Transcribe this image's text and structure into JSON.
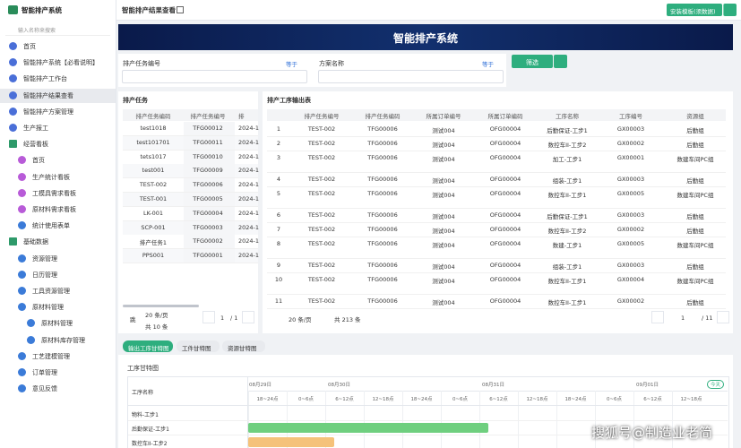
{
  "sidebar": {
    "logo": "智能排产系统",
    "search_placeholder": "输入名称来搜索",
    "menu": [
      "首页",
      "智能排产系统【必看说明】",
      "智能排产工作台",
      "智能排产结果查看",
      "智能排产方案管理",
      "生产报工",
      "经营看板",
      "首页",
      "生产统计看板",
      "工模具需求看板",
      "原材料需求看板",
      "统计使用表单",
      "基础数据",
      "资源管理",
      "日历管理",
      "工具资源管理",
      "原材料管理",
      "原材料管理",
      "原材料库存管理",
      "工艺建模管理",
      "订单管理",
      "意见反馈"
    ]
  },
  "header": {
    "title": "智能排产结果查看",
    "button": "安装模板(须数据)"
  },
  "banner": {
    "title": "智能排产系统"
  },
  "filters": [
    {
      "label": "排产任务编号",
      "operator": "等于"
    },
    {
      "label": "方案名称",
      "operator": "等于"
    }
  ],
  "filter_button": "筛选",
  "task_panel": {
    "title": "排产任务",
    "columns": [
      "排产任务编码",
      "排产任务编号",
      "排"
    ],
    "rows": [
      [
        "test1018",
        "TFG00012",
        "2024-1"
      ],
      [
        "test101701",
        "TFG00011",
        "2024-1"
      ],
      [
        "tets1017",
        "TFG00010",
        "2024-1"
      ],
      [
        "test001",
        "TFG00009",
        "2024-1"
      ],
      [
        "TEST-002",
        "TFG00006",
        "2024-1"
      ],
      [
        "TEST-001",
        "TFG00005",
        "2024-1"
      ],
      [
        "LK-001",
        "TFG00004",
        "2024-1"
      ],
      [
        "SCP-001",
        "TFG00003",
        "2024-1"
      ],
      [
        "排产任务1",
        "TFG00002",
        "2024-1"
      ],
      [
        "PPS001",
        "TFG00001",
        "2024-1"
      ]
    ],
    "pagination": {
      "jump": "跳",
      "page_size": "20 条/页",
      "page": "1",
      "pages": "/ 1",
      "total": "共 10 条"
    }
  },
  "output_panel": {
    "title": "排产工序输出表",
    "columns": [
      "排产任务编号",
      "排产任务编码",
      "所属订单编号",
      "所属订单编码",
      "工序名称",
      "工序编号",
      "资源组"
    ],
    "rows": [
      [
        "1",
        "TEST-002",
        "TFG00006",
        "测试004",
        "OFG00004",
        "后勤保证-工步1",
        "GX00003",
        "后勤组"
      ],
      [
        "2",
        "TEST-002",
        "TFG00006",
        "测试004",
        "OFG00004",
        "数控车II-工步2",
        "GX00002",
        "后勤组"
      ],
      [
        "3",
        "TEST-002",
        "TFG00006",
        "测试004",
        "OFG00004",
        "加工-工步1",
        "GX00001",
        "数建车间PC组"
      ],
      [
        "4",
        "TEST-002",
        "TFG00006",
        "测试004",
        "OFG00004",
        "组装-工步1",
        "GX00003",
        "后勤组"
      ],
      [
        "5",
        "TEST-002",
        "TFG00006",
        "测试004",
        "OFG00004",
        "数控车II-工步1",
        "GX00005",
        "数建车间PC组"
      ],
      [
        "6",
        "TEST-002",
        "TFG00006",
        "测试004",
        "OFG00004",
        "后勤保证-工步1",
        "GX00003",
        "后勤组"
      ],
      [
        "7",
        "TEST-002",
        "TFG00006",
        "测试004",
        "OFG00004",
        "数控车II-工步2",
        "GX00002",
        "后勤组"
      ],
      [
        "8",
        "TEST-002",
        "TFG00006",
        "测试004",
        "OFG00004",
        "数建-工步1",
        "GX00005",
        "数建车间PC组"
      ],
      [
        "9",
        "TEST-002",
        "TFG00006",
        "测试004",
        "OFG00004",
        "组装-工步1",
        "GX00003",
        "后勤组"
      ],
      [
        "10",
        "TEST-002",
        "TFG00006",
        "测试004",
        "OFG00004",
        "数控车II-工步1",
        "GX00004",
        "数建车间PC组"
      ],
      [
        "11",
        "TEST-002",
        "TFG00006",
        "测试004",
        "OFG00004",
        "数控车II-工步1",
        "GX00002",
        "后勤组"
      ]
    ],
    "pagination": {
      "page_size": "20 条/页",
      "total": "共 213 条",
      "page": "1",
      "pages": "/ 11"
    }
  },
  "tabs": [
    "输出工序甘特图",
    "工件甘特图",
    "资源甘特图"
  ],
  "gantt": {
    "title": "工序甘特图",
    "row_header": "工序名称",
    "today": "今天",
    "dates": [
      "08月29日",
      "08月30日",
      "08月31日",
      "09月01日"
    ],
    "slots": [
      "18~24点",
      "0~6点",
      "6~12点",
      "12~18点",
      "18~24点",
      "0~6点",
      "6~12点",
      "12~18点",
      "18~24点",
      "0~6点",
      "6~12点",
      "12~18点"
    ],
    "rows": [
      "物料-工步1",
      "后勤保证-工步1",
      "数控车II-工步2"
    ]
  },
  "watermark": "搜狐号@制造业老简"
}
